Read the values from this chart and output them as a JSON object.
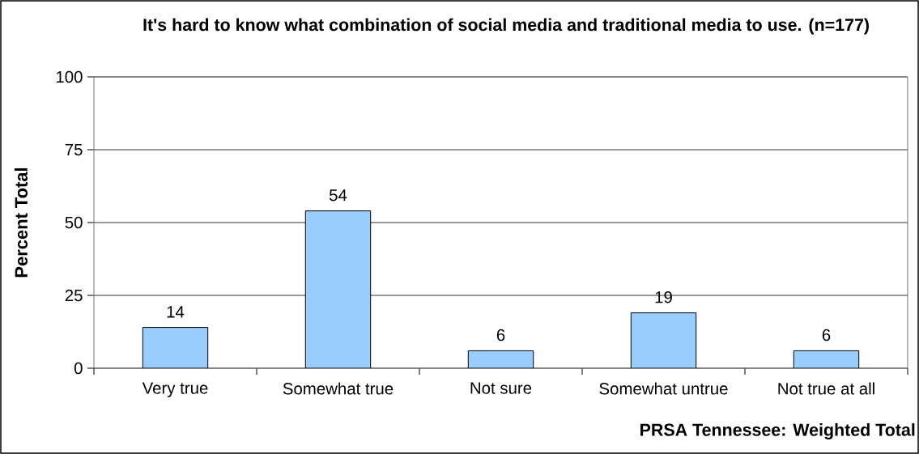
{
  "chart_data": {
    "type": "bar",
    "title": "It's hard to know what combination of social media and traditional media to use.  (n=177)",
    "ylabel": "Percent Total",
    "categories": [
      "Very true",
      "Somewhat true",
      "Not sure",
      "Somewhat untrue",
      "Not true at all"
    ],
    "values": [
      14,
      54,
      6,
      19,
      6
    ],
    "color": "#99ccff",
    "data_labels": true,
    "ylim": [
      0,
      100
    ],
    "yticks": [
      0,
      25,
      50,
      75,
      100
    ],
    "grid": "y",
    "annotations": [
      "PRSA Tennessee:  Weighted Total"
    ]
  }
}
